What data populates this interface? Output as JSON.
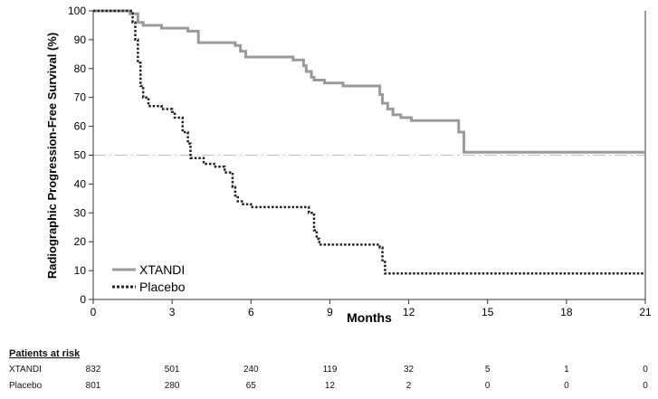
{
  "chart_data": {
    "type": "line",
    "title": "",
    "xlabel": "Months",
    "ylabel": "Radiographic Progression-Free Survival (%)",
    "xlim": [
      0,
      21
    ],
    "ylim": [
      0,
      100
    ],
    "xticks": [
      0,
      3,
      6,
      9,
      12,
      15,
      18,
      21
    ],
    "yticks": [
      0,
      10,
      20,
      30,
      40,
      50,
      60,
      70,
      80,
      90,
      100
    ],
    "reference_line_y": 50,
    "legend_position": "lower-left",
    "series": [
      {
        "name": "XTANDI",
        "style": "solid",
        "color": "#9a9a9a",
        "x": [
          0,
          1.4,
          1.7,
          1.9,
          2.6,
          3.4,
          3.6,
          4.0,
          5.4,
          5.6,
          5.8,
          7.6,
          8.0,
          8.1,
          8.3,
          8.4,
          8.8,
          9.2,
          9.5,
          10.7,
          10.9,
          11.0,
          11.2,
          11.4,
          11.7,
          12.1,
          13.1,
          13.9,
          14.1,
          21.0
        ],
        "y": [
          100,
          99,
          96,
          95,
          94,
          94,
          93,
          89,
          88,
          86,
          84,
          83,
          81,
          79,
          77,
          76,
          75,
          75,
          74,
          74,
          71,
          68,
          66,
          64,
          63,
          62,
          62,
          58,
          51,
          51
        ]
      },
      {
        "name": "Placebo",
        "style": "dotted",
        "color": "#222222",
        "x": [
          0,
          1.5,
          1.6,
          1.7,
          1.8,
          1.9,
          2.1,
          2.6,
          3.0,
          3.1,
          3.4,
          3.6,
          3.7,
          4.2,
          4.6,
          5.0,
          5.3,
          5.4,
          5.5,
          5.7,
          6.0,
          7.5,
          8.2,
          8.4,
          8.5,
          8.6,
          10.9,
          11.0,
          11.1,
          21.0
        ],
        "y": [
          100,
          96,
          90,
          82,
          74,
          70,
          67,
          66,
          65,
          63,
          58,
          54,
          49,
          47,
          46,
          44,
          39,
          36,
          34,
          33,
          32,
          32,
          30,
          24,
          21,
          19,
          18,
          13,
          9,
          9
        ]
      }
    ]
  },
  "risk_table": {
    "title": "Patients at risk",
    "months": [
      0,
      3,
      6,
      9,
      12,
      15,
      18,
      21
    ],
    "rows": [
      {
        "label": "XTANDI",
        "values": [
          "832",
          "501",
          "240",
          "119",
          "32",
          "5",
          "1",
          "0"
        ]
      },
      {
        "label": "Placebo",
        "values": [
          "801",
          "280",
          "65",
          "12",
          "2",
          "0",
          "0",
          "0"
        ]
      }
    ]
  }
}
